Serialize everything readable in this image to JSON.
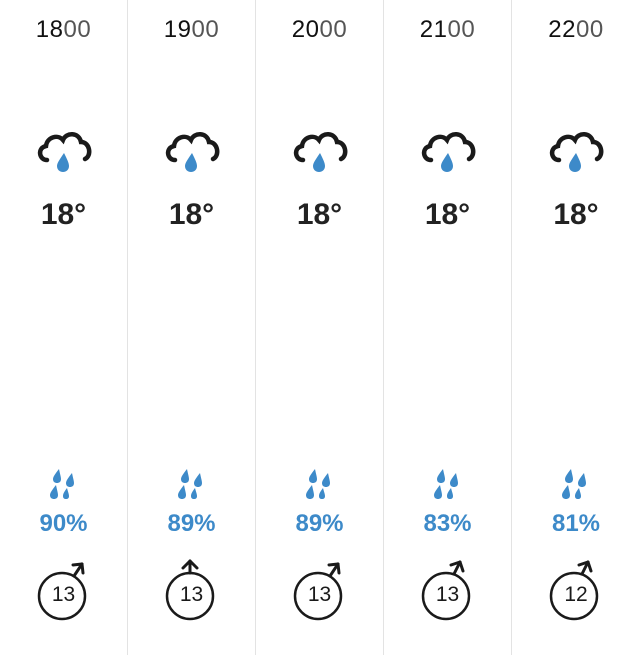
{
  "forecast": [
    {
      "hour": "18",
      "minutes": "00",
      "icon": "cloud-rain-icon",
      "temperature": "18°",
      "rain_chance": "90%",
      "wind_speed": "13"
    },
    {
      "hour": "19",
      "minutes": "00",
      "icon": "cloud-rain-icon",
      "temperature": "18°",
      "rain_chance": "89%",
      "wind_speed": "13"
    },
    {
      "hour": "20",
      "minutes": "00",
      "icon": "cloud-rain-icon",
      "temperature": "18°",
      "rain_chance": "89%",
      "wind_speed": "13"
    },
    {
      "hour": "21",
      "minutes": "00",
      "icon": "cloud-rain-icon",
      "temperature": "18°",
      "rain_chance": "83%",
      "wind_speed": "13"
    },
    {
      "hour": "22",
      "minutes": "00",
      "icon": "cloud-rain-icon",
      "temperature": "18°",
      "rain_chance": "81%",
      "wind_speed": "12"
    }
  ],
  "colors": {
    "rain": "#3d8ac9",
    "text": "#1a1a1a",
    "divider": "#e3e3e3"
  }
}
